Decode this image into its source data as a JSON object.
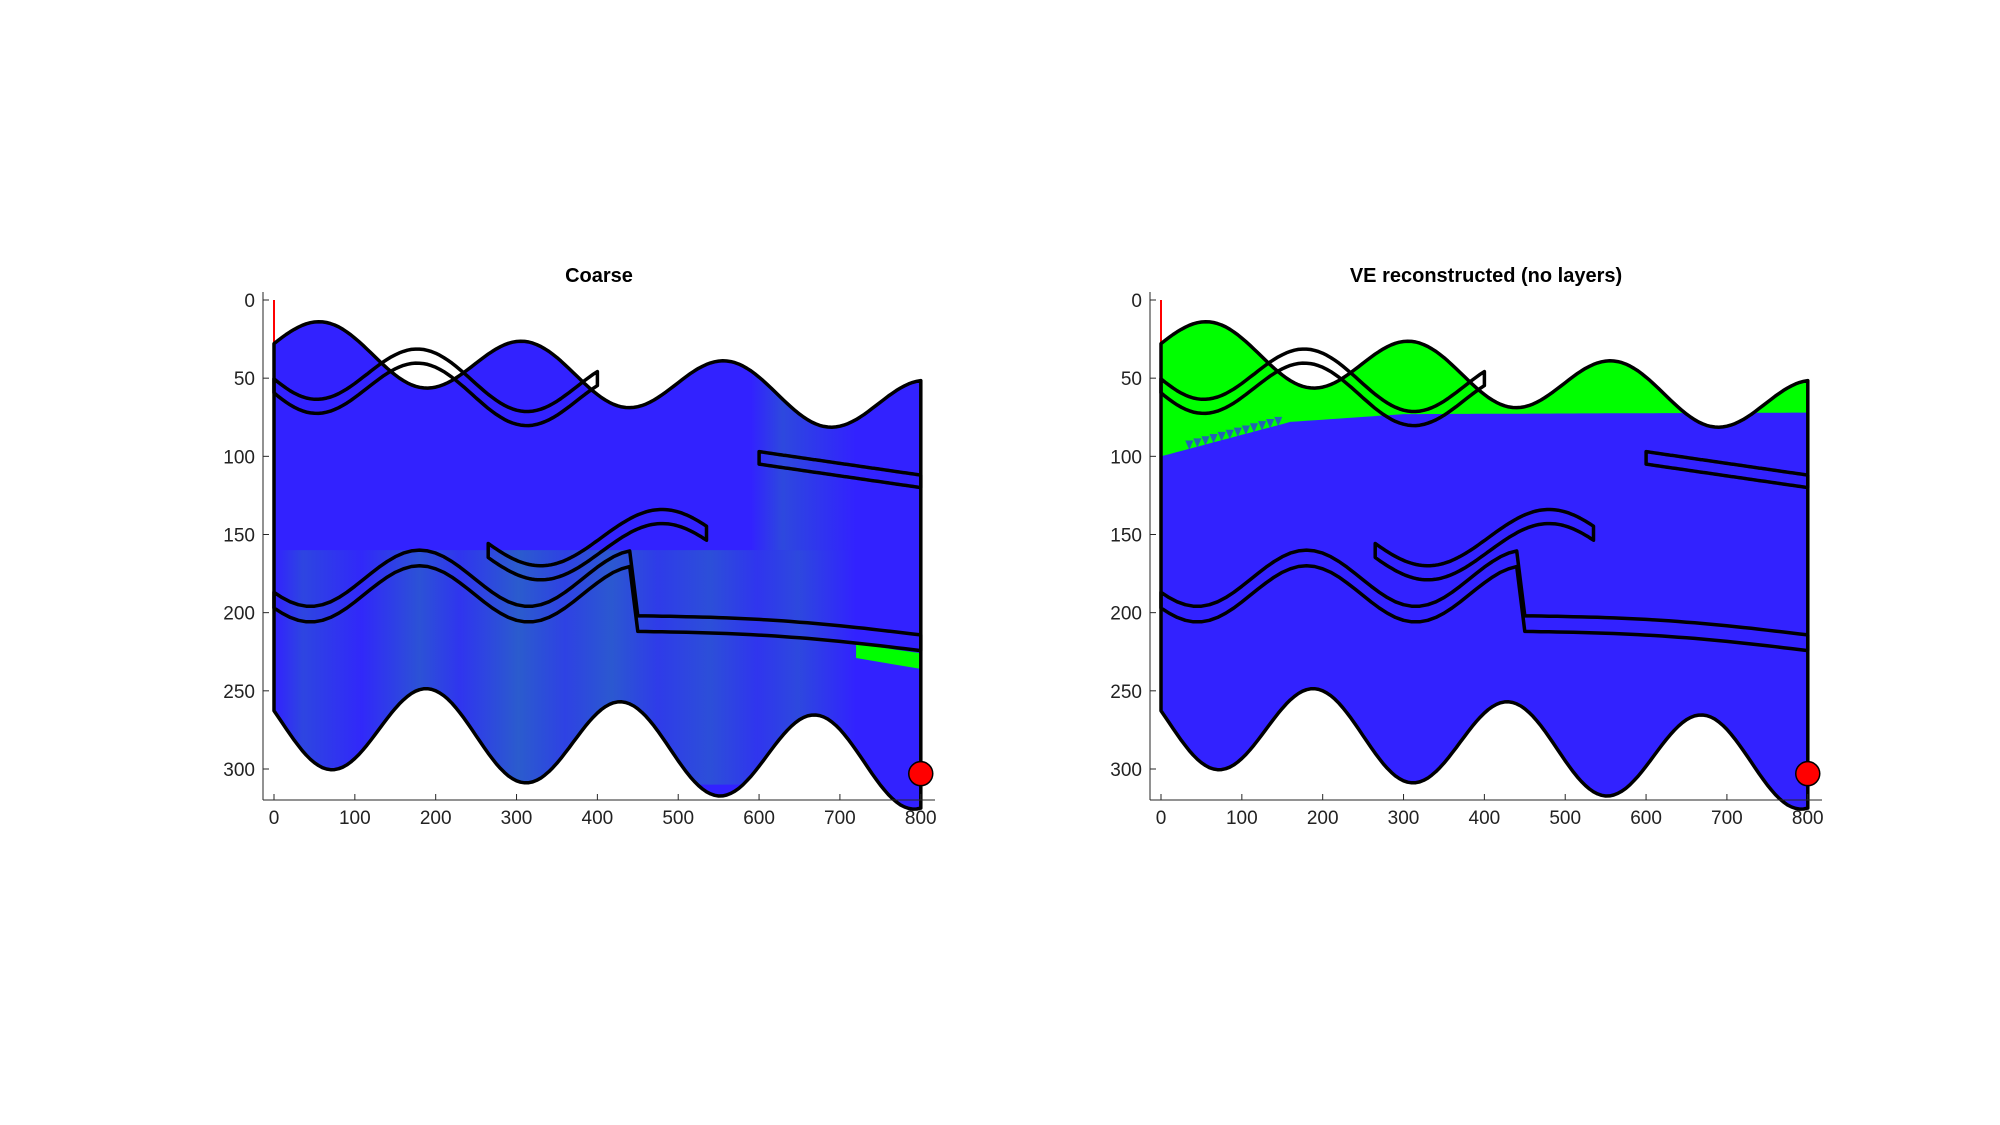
{
  "chart_data": [
    {
      "type": "heatmap",
      "title": "Coarse",
      "xlim": [
        0,
        800
      ],
      "ylim": [
        0,
        310
      ],
      "y_direction": "reversed",
      "xticks": [
        0,
        100,
        200,
        300,
        400,
        500,
        600,
        700,
        800
      ],
      "yticks": [
        0,
        50,
        100,
        150,
        200,
        250,
        300
      ],
      "fill": "saturation_blue_green",
      "colors": {
        "water": "#3222ff",
        "co2": "#00ff00",
        "mixed": "#2a62c8",
        "outline": "#000000",
        "well": "#ff0000"
      },
      "green_patches": [
        "right_edge_wedge"
      ],
      "injection_point": {
        "x": 800,
        "y": 303
      }
    },
    {
      "type": "heatmap",
      "title": "VE reconstructed (no layers)",
      "xlim": [
        0,
        800
      ],
      "ylim": [
        0,
        310
      ],
      "y_direction": "reversed",
      "xticks": [
        0,
        100,
        200,
        300,
        400,
        500,
        600,
        700,
        800
      ],
      "yticks": [
        0,
        50,
        100,
        150,
        200,
        250,
        300
      ],
      "fill": "saturation_blue_green",
      "colors": {
        "water": "#3222ff",
        "co2": "#00ff00",
        "outline": "#000000",
        "well": "#ff0000"
      },
      "green_patches": [
        "top_plume"
      ],
      "injection_point": {
        "x": 800,
        "y": 303
      }
    }
  ]
}
